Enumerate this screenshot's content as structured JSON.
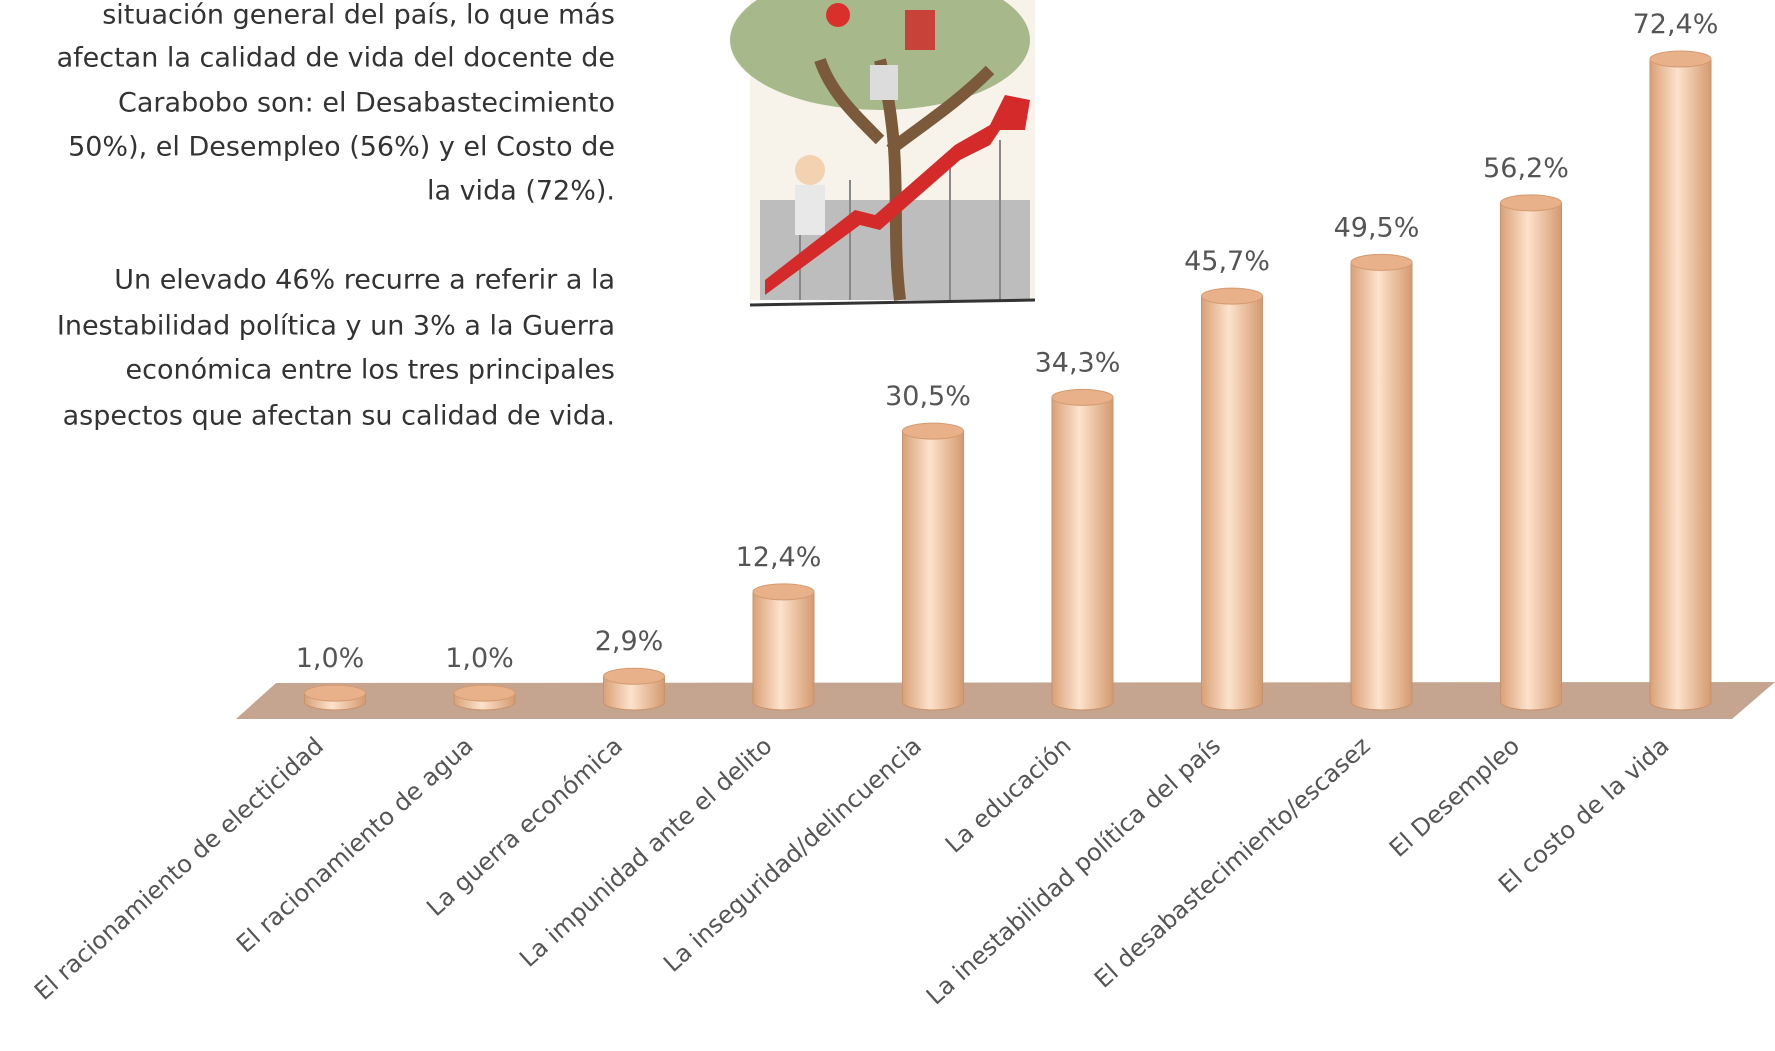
{
  "chart_data": {
    "type": "bar",
    "annotations": [
      "situación general del país, lo que más",
      "afectan la calidad de vida del docente de",
      "Carabobo son: el Desabastecimiento",
      "50%),  el  Desempleo (56%) y el Costo de",
      "la vida (72%).",
      "Un elevado 46% recurre a referir a la",
      "Inestabilidad política y un 3% a la Guerra",
      "económica entre los tres principales",
      "aspectos que afectan su calidad de vida."
    ],
    "categories": [
      "El racionamiento de electicidad",
      "El racionamiento de agua",
      "La guerra económica",
      "La impunidad ante el delito",
      "La inseguridad/delincuencia",
      "La educación",
      "La inestabilidad política del país",
      "El desabastecimiento/escasez",
      "El Desempleo",
      "El costo de la vida"
    ],
    "values": [
      1.0,
      1.0,
      2.9,
      12.4,
      30.5,
      34.3,
      45.7,
      49.5,
      56.2,
      72.4
    ],
    "value_labels": [
      "1,0%",
      "1,0%",
      "2,9%",
      "12,4%",
      "30,5%",
      "34,3%",
      "45,7%",
      "49,5%",
      "56,2%",
      "72,4%"
    ],
    "color": "#f3c6a2"
  }
}
